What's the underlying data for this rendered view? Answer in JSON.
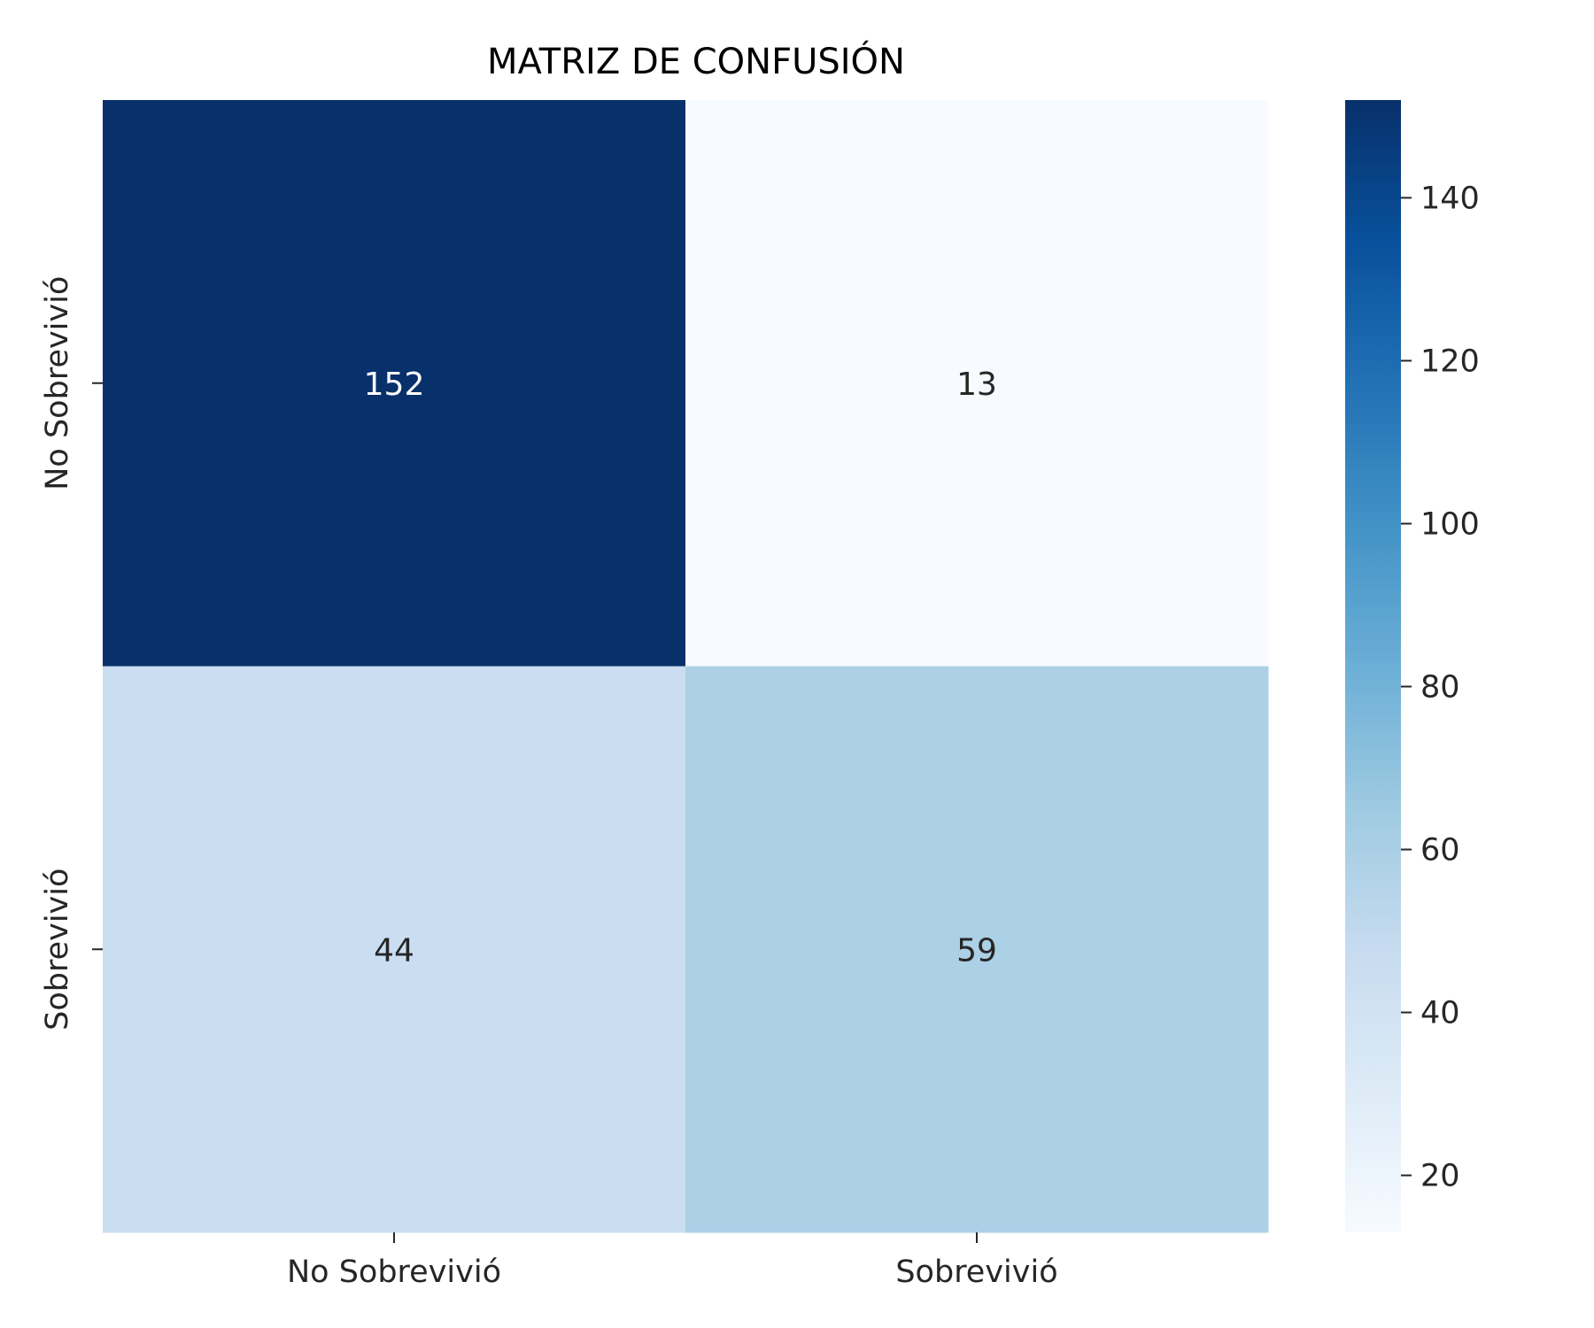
{
  "chart_data": {
    "type": "heatmap",
    "title": "MATRIZ DE CONFUSIÓN",
    "x_categories": [
      "No Sobrevivió",
      "Sobrevivió"
    ],
    "y_categories": [
      "No Sobrevivió",
      "Sobrevivió"
    ],
    "matrix": [
      [
        152,
        13
      ],
      [
        44,
        59
      ]
    ],
    "colormap": "Blues",
    "color_range": [
      13,
      152
    ],
    "colorbar_ticks": [
      20,
      40,
      60,
      80,
      100,
      120,
      140
    ],
    "grid": false,
    "colorbar_position": "right"
  }
}
